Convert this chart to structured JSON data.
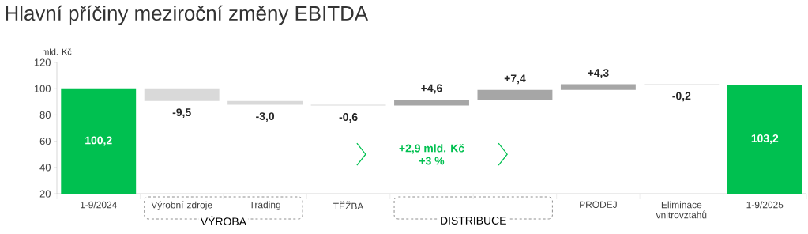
{
  "chart_data": {
    "type": "bar",
    "title": "Hlavní příčiny meziroční změny EBITDA",
    "ylabel": "mld. Kč",
    "categories": [
      "1-9/2024",
      "Výrobní zdroje",
      "Trading",
      "TĚŽBA",
      null,
      null,
      "PRODEJ",
      "Eliminace vnitrovztahů",
      "1-9/2025"
    ],
    "values": [
      100.2,
      -9.5,
      -3.0,
      -0.6,
      4.6,
      7.4,
      4.3,
      -0.2,
      103.2
    ],
    "base": [
      0,
      100.2,
      90.7,
      87.7,
      87.1,
      91.7,
      99.1,
      103.4,
      0
    ],
    "colors": [
      "#00c050",
      "#d9d9d9",
      "#d9d9d9",
      "#d9d9d9",
      "#a6a6a6",
      "#a6a6a6",
      "#a6a6a6",
      "#d9d9d9",
      "#00c050"
    ],
    "value_labels": [
      "100,2",
      "-9,5",
      "-3,0",
      "-0,6",
      "+4,6",
      "+7,4",
      "+4,3",
      "-0,2",
      "103,2"
    ],
    "ylim": [
      20,
      120
    ],
    "yticks": [
      20,
      40,
      60,
      80,
      100,
      120
    ],
    "annotations": [
      "+2,9 mld. Kč",
      "+3 %",
      "VÝROBA",
      "DISTRIBUCE"
    ]
  }
}
